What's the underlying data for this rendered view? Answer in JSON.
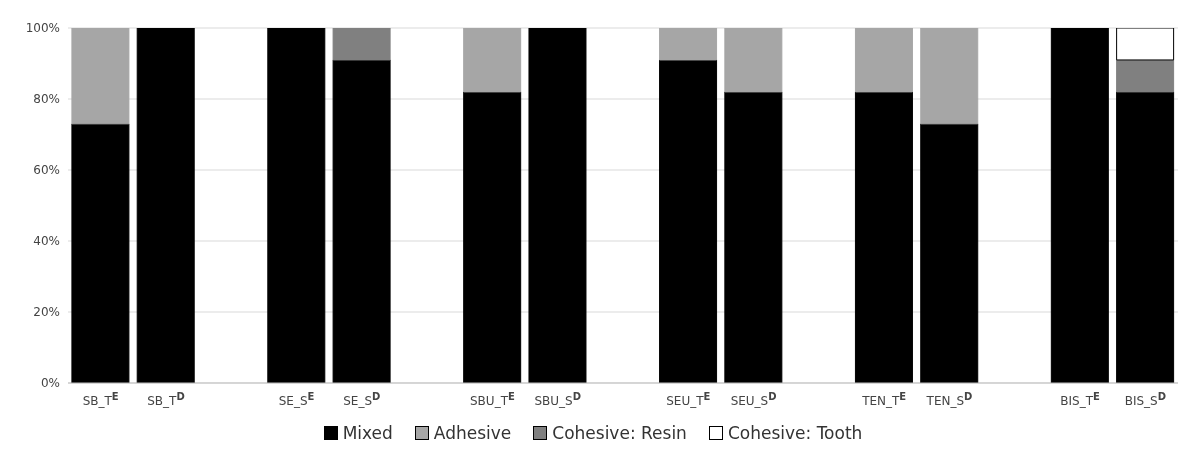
{
  "chart_data": {
    "type": "bar",
    "stacked": true,
    "categories": [
      "SB_T$^{E}$",
      "SB_T$^{D}$",
      null,
      "SE_S$^{E}$",
      "SE_S$^{D}$",
      null,
      "SBU_T$^{E}$",
      "SBU_S$^{D}$",
      null,
      "SEU_T$^{E}$",
      "SEU_S$^{D}$",
      null,
      "TEN_T$^{E}$",
      "TEN_S$^{D}$",
      null,
      "BIS_T$^{E}$",
      "BIS_S$^{D}$"
    ],
    "series": [
      {
        "name": "Mixed",
        "color": "#000000",
        "values": [
          73,
          100,
          null,
          100,
          91,
          null,
          82,
          100,
          null,
          91,
          82,
          null,
          82,
          73,
          null,
          100,
          82
        ]
      },
      {
        "name": "Adhesive",
        "color": "#a6a6a6",
        "values": [
          27,
          0,
          null,
          0,
          0,
          null,
          18,
          0,
          null,
          9,
          18,
          null,
          18,
          27,
          null,
          0,
          0
        ]
      },
      {
        "name": "Cohesive: Resin",
        "color": "#808080",
        "values": [
          0,
          0,
          null,
          0,
          9,
          null,
          0,
          0,
          null,
          0,
          0,
          null,
          0,
          0,
          null,
          0,
          9
        ]
      },
      {
        "name": "Cohesive: Tooth",
        "color": "#ffffff",
        "values": [
          0,
          0,
          null,
          0,
          0,
          null,
          0,
          0,
          null,
          0,
          0,
          null,
          0,
          0,
          null,
          0,
          9
        ]
      }
    ],
    "ylim": [
      0,
      100
    ],
    "yticks": [
      {
        "value": 0,
        "label": "0%"
      },
      {
        "value": 20,
        "label": "20%"
      },
      {
        "value": 40,
        "label": "40%"
      },
      {
        "value": 60,
        "label": "60%"
      },
      {
        "value": 80,
        "label": "80%"
      },
      {
        "value": 100,
        "label": "100%"
      }
    ],
    "grid": "y",
    "legend": "bottom"
  }
}
